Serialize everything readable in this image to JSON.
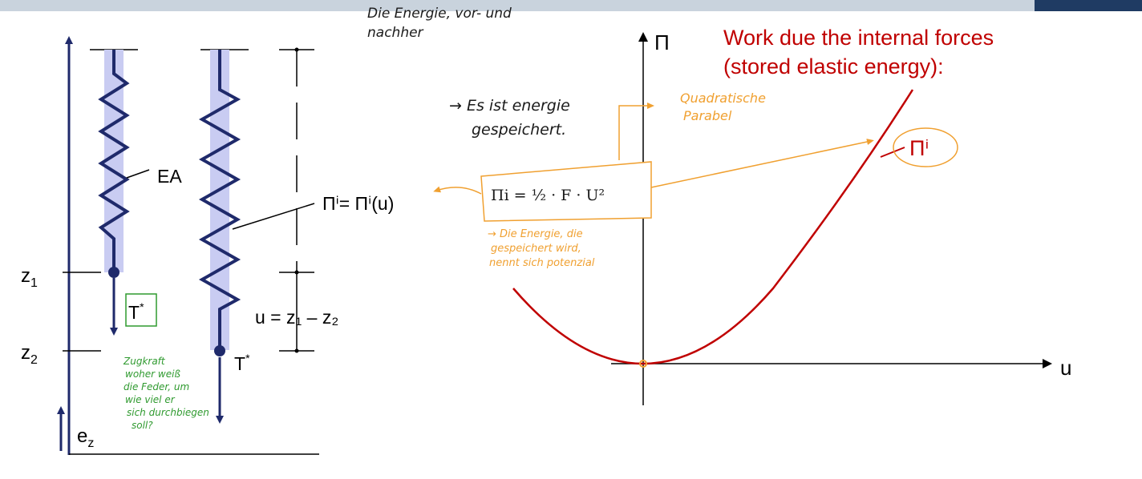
{
  "colors": {
    "ink": "#1f2a6b",
    "spring_band": "#c9ccf2",
    "curve_red": "#c00000",
    "note_orange": "#f0a030",
    "note_green": "#2f9a2f",
    "header_bar": "#c9d3dd",
    "header_dark": "#1f3b63"
  },
  "left_diagram": {
    "label_ea": "EA",
    "label_pi_i": "Πⁱ= Πⁱ(u)",
    "label_u": "u = z₁ – z₂",
    "label_z1": "z₁",
    "label_z2": "z₂",
    "label_ez": "e_z",
    "label_t_star_1": "T*",
    "label_t_star_2": "T*"
  },
  "right_diagram": {
    "title_line1": "Work due the internal forces",
    "title_line2": "(stored elastic energy):",
    "axis_y_label": "Π",
    "axis_x_label": "u",
    "curve_label": "Πⁱ",
    "formula": "Πi = ½ · F · U²"
  },
  "handwritten_notes": {
    "top_line1": "Die Energie, vor- und",
    "top_line2": "nachher",
    "stored_line1": "→ Es ist energie",
    "stored_line2": "gespeichert.",
    "parabola_line1": "Quadratische",
    "parabola_line2": "Parabel",
    "potential_line1": "→ Die Energie, die",
    "potential_line2": "gespeichert wird,",
    "potential_line3": "nennt sich potenzial",
    "green_line1": "Zugkraft",
    "green_line2": "woher weiß",
    "green_line3": "die Feder, um",
    "green_line4": "wie viel er",
    "green_line5": "sich durchbiegen",
    "green_line6": "soll?"
  }
}
